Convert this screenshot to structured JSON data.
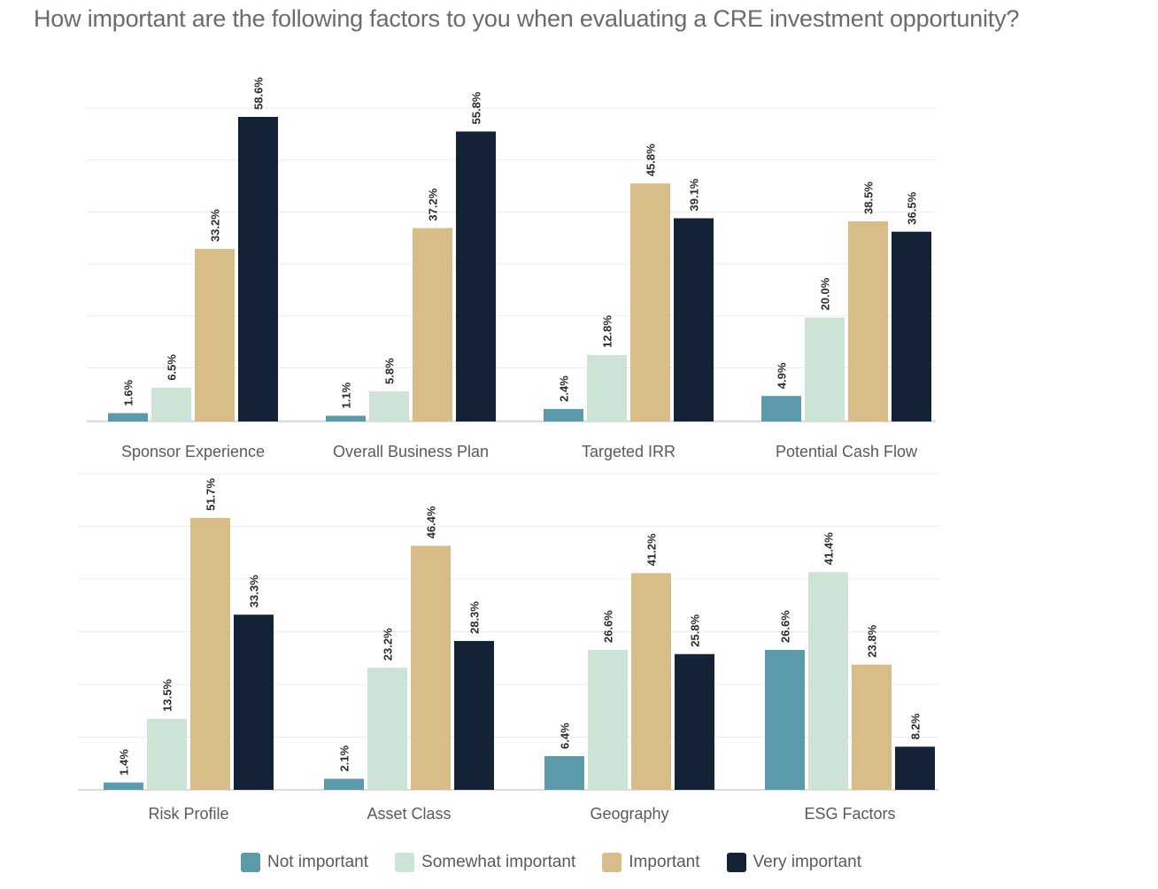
{
  "title": "How important are the following factors to you when evaluating a CRE investment opportunity?",
  "colors": {
    "not_important": "#5b9aab",
    "somewhat_important": "#cde3d6",
    "important": "#d9bd88",
    "very_important": "#142235",
    "grid": "#ececec",
    "axis": "#c8c8c8",
    "label": "#5a5a5a"
  },
  "legend": [
    {
      "key": "not_important",
      "label": "Not important"
    },
    {
      "key": "somewhat_important",
      "label": "Somewhat important"
    },
    {
      "key": "important",
      "label": "Important"
    },
    {
      "key": "very_important",
      "label": "Very important"
    }
  ],
  "chart_data": [
    {
      "type": "bar",
      "categories": [
        "Sponsor Experience",
        "Overall Business Plan",
        "Targeted IRR",
        "Potential Cash Flow"
      ],
      "series": [
        {
          "name": "Not important",
          "values": [
            1.6,
            1.1,
            2.4,
            4.9
          ]
        },
        {
          "name": "Somewhat important",
          "values": [
            6.5,
            5.8,
            12.8,
            20.0
          ]
        },
        {
          "name": "Important",
          "values": [
            33.2,
            37.2,
            45.8,
            38.5
          ]
        },
        {
          "name": "Very important",
          "values": [
            58.6,
            55.8,
            39.1,
            36.5
          ]
        }
      ],
      "value_labels": [
        [
          "1.6%",
          "6.5%",
          "33.2%",
          "58.6%"
        ],
        [
          "1.1%",
          "5.8%",
          "37.2%",
          "55.8%"
        ],
        [
          "2.4%",
          "12.8%",
          "45.8%",
          "39.1%"
        ],
        [
          "4.9%",
          "20.0%",
          "38.5%",
          "36.5%"
        ]
      ],
      "ylim": [
        0,
        60
      ],
      "grid": true
    },
    {
      "type": "bar",
      "categories": [
        "Risk Profile",
        "Asset Class",
        "Geography",
        "ESG Factors"
      ],
      "series": [
        {
          "name": "Not important",
          "values": [
            1.4,
            2.1,
            6.4,
            26.6
          ]
        },
        {
          "name": "Somewhat important",
          "values": [
            13.5,
            23.2,
            26.6,
            41.4
          ]
        },
        {
          "name": "Important",
          "values": [
            51.7,
            46.4,
            41.2,
            23.8
          ]
        },
        {
          "name": "Very important",
          "values": [
            33.3,
            28.3,
            25.8,
            8.2
          ]
        }
      ],
      "value_labels": [
        [
          "1.4%",
          "13.5%",
          "51.7%",
          "33.3%"
        ],
        [
          "2.1%",
          "23.2%",
          "46.4%",
          "28.3%"
        ],
        [
          "6.4%",
          "26.6%",
          "41.2%",
          "25.8%"
        ],
        [
          "26.6%",
          "41.4%",
          "23.8%",
          "8.2%"
        ]
      ],
      "ylim": [
        0,
        60
      ],
      "grid": true
    }
  ]
}
